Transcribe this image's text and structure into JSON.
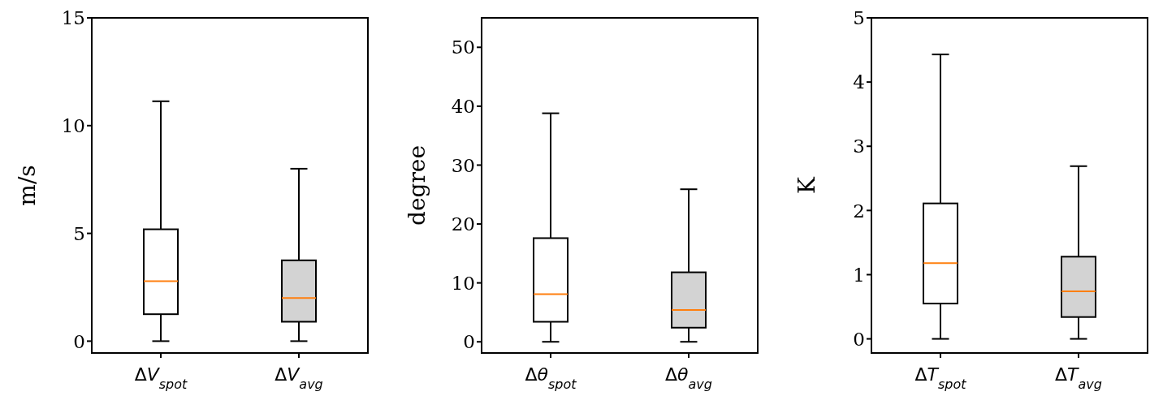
{
  "chart_data": [
    {
      "type": "box",
      "categories": [
        "ΔV$_{spot}$",
        "ΔV$_{avg}$"
      ],
      "ylabel": "m/s",
      "ylim": [
        -0.55,
        15
      ],
      "yticks": [
        0,
        5,
        10,
        15
      ],
      "colors": [
        "#ffffff",
        "#d3d3d3"
      ],
      "boxes": [
        {
          "low": 0,
          "q1": 1.25,
          "median": 2.78,
          "q3": 5.19,
          "high": 11.13
        },
        {
          "low": 0,
          "q1": 0.9,
          "median": 2.0,
          "q3": 3.75,
          "high": 8.0
        }
      ]
    },
    {
      "type": "box",
      "categories": [
        "Δθ$_{spot}$",
        "Δθ$_{avg}$"
      ],
      "ylabel": "degree",
      "ylim": [
        -1.9,
        55
      ],
      "yticks": [
        0,
        10,
        20,
        30,
        40,
        50
      ],
      "colors": [
        "#ffffff",
        "#d3d3d3"
      ],
      "boxes": [
        {
          "low": 0,
          "q1": 3.4,
          "median": 8.1,
          "q3": 17.6,
          "high": 38.8
        },
        {
          "low": 0,
          "q1": 2.4,
          "median": 5.4,
          "q3": 11.8,
          "high": 25.9
        }
      ]
    },
    {
      "type": "box",
      "categories": [
        "ΔT$_{spot}$",
        "ΔT$_{avg}$"
      ],
      "ylabel": "K",
      "ylim": [
        -0.22,
        5
      ],
      "yticks": [
        0,
        1,
        2,
        3,
        4,
        5
      ],
      "colors": [
        "#ffffff",
        "#d3d3d3"
      ],
      "boxes": [
        {
          "low": 0,
          "q1": 0.55,
          "median": 1.18,
          "q3": 2.11,
          "high": 4.43
        },
        {
          "low": 0,
          "q1": 0.34,
          "median": 0.74,
          "q3": 1.28,
          "high": 2.69
        }
      ]
    }
  ]
}
